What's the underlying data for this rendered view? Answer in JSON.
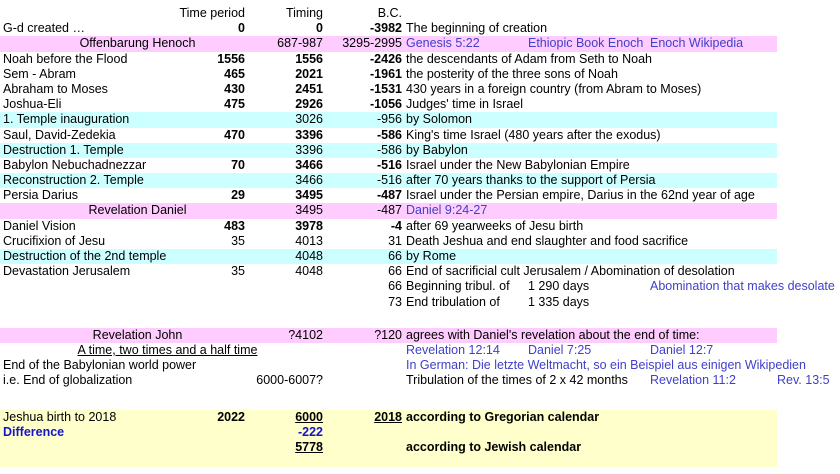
{
  "colors": {
    "pink": "#ffccff",
    "cyan": "#ccffff",
    "yellow": "#ffffcc",
    "link": "#4040c8",
    "blue": "#1414cc",
    "text": "#000000"
  },
  "columns": {
    "header_time_period": "Time period",
    "header_timing": "Timing",
    "header_bc": "B.C."
  },
  "rows": [
    {
      "header": true,
      "b": {
        "text": "Time period"
      },
      "c": {
        "text": "Timing"
      },
      "d": {
        "text": "B.C."
      }
    },
    {
      "a": {
        "text": "G-d created …"
      },
      "b": {
        "text": "0",
        "bold": true
      },
      "c": {
        "text": "0",
        "bold": true
      },
      "d": {
        "text": "-3982",
        "bold": true
      },
      "e": [
        {
          "text": "The beginning of creation",
          "col": "E"
        }
      ]
    },
    {
      "bg": "pink",
      "a": {
        "text": "Offenbarung Henoch",
        "align": "center",
        "cw": 275
      },
      "c": {
        "text": "687-987"
      },
      "d": {
        "text": "3295-2995"
      },
      "e": [
        {
          "text": "Genesis 5:22",
          "col": "E",
          "color": "link",
          "link": true
        },
        {
          "text": "Ethiopic Book Enoch",
          "col": "F",
          "color": "link",
          "link": true
        },
        {
          "text": "Enoch Wikipedia",
          "col": "G",
          "color": "link",
          "link": true
        }
      ]
    },
    {
      "a": {
        "text": "Noah before the Flood"
      },
      "b": {
        "text": "1556",
        "bold": true
      },
      "c": {
        "text": "1556",
        "bold": true
      },
      "d": {
        "text": "-2426",
        "bold": true
      },
      "e": [
        {
          "text": "the descendants of Adam from Seth to Noah",
          "col": "E"
        }
      ]
    },
    {
      "a": {
        "text": "Sem - Abram"
      },
      "b": {
        "text": "465",
        "bold": true
      },
      "c": {
        "text": "2021",
        "bold": true
      },
      "d": {
        "text": "-1961",
        "bold": true
      },
      "e": [
        {
          "text": "the posterity of the three sons of Noah",
          "col": "E"
        }
      ]
    },
    {
      "a": {
        "text": "Abraham to Moses"
      },
      "b": {
        "text": "430",
        "bold": true
      },
      "c": {
        "text": "2451",
        "bold": true
      },
      "d": {
        "text": "-1531",
        "bold": true
      },
      "e": [
        {
          "text": "430 years in a foreign country (from Abram to Moses)",
          "col": "E"
        }
      ]
    },
    {
      "a": {
        "text": "Joshua-Eli"
      },
      "b": {
        "text": "475",
        "bold": true
      },
      "c": {
        "text": "2926",
        "bold": true
      },
      "d": {
        "text": "-1056",
        "bold": true
      },
      "e": [
        {
          "text": "Judges' time in Israel",
          "col": "E"
        }
      ]
    },
    {
      "bg": "cyan",
      "a": {
        "text": "1. Temple inauguration"
      },
      "c": {
        "text": "3026"
      },
      "d": {
        "text": "-956"
      },
      "e": [
        {
          "text": "by Solomon",
          "col": "E"
        }
      ]
    },
    {
      "a": {
        "text": "Saul, David-Zedekia"
      },
      "b": {
        "text": "470",
        "bold": true
      },
      "c": {
        "text": "3396",
        "bold": true
      },
      "d": {
        "text": "-586",
        "bold": true
      },
      "e": [
        {
          "text": "King's time Israel (480 years after the exodus)",
          "col": "E"
        }
      ]
    },
    {
      "bg": "cyan",
      "a": {
        "text": "Destruction 1. Temple"
      },
      "c": {
        "text": "3396"
      },
      "d": {
        "text": "-586"
      },
      "e": [
        {
          "text": "by Babylon",
          "col": "E"
        }
      ]
    },
    {
      "a": {
        "text": "Babylon Nebuchadnezzar"
      },
      "b": {
        "text": "70",
        "bold": true
      },
      "c": {
        "text": "3466",
        "bold": true
      },
      "d": {
        "text": "-516",
        "bold": true
      },
      "e": [
        {
          "text": "Israel under the New Babylonian Empire",
          "col": "E"
        }
      ]
    },
    {
      "bg": "cyan",
      "a": {
        "text": "Reconstruction 2. Temple"
      },
      "c": {
        "text": "3466"
      },
      "d": {
        "text": "-516"
      },
      "e": [
        {
          "text": "after 70 years thanks to the support of Persia",
          "col": "E"
        }
      ]
    },
    {
      "a": {
        "text": "Persia Darius"
      },
      "b": {
        "text": "29",
        "bold": true
      },
      "c": {
        "text": "3495",
        "bold": true
      },
      "d": {
        "text": "-487",
        "bold": true
      },
      "e": [
        {
          "text": "Israel under the Persian empire, Darius in the 62nd year of age",
          "col": "E"
        }
      ]
    },
    {
      "bg": "pink",
      "a": {
        "text": "Revelation Daniel",
        "align": "center",
        "cw": 275
      },
      "c": {
        "text": "3495"
      },
      "d": {
        "text": "-487"
      },
      "e": [
        {
          "text": "Daniel 9:24-27",
          "col": "E",
          "color": "link",
          "link": true
        }
      ]
    },
    {
      "a": {
        "text": "Daniel Vision"
      },
      "b": {
        "text": "483",
        "bold": true
      },
      "c": {
        "text": "3978",
        "bold": true
      },
      "d": {
        "text": "-4",
        "bold": true
      },
      "e": [
        {
          "text": "after 69 yearweeks of Jesu birth",
          "col": "E"
        }
      ]
    },
    {
      "a": {
        "text": "Crucifixion of Jesu"
      },
      "b": {
        "text": "35"
      },
      "c": {
        "text": "4013"
      },
      "d": {
        "text": "31"
      },
      "e": [
        {
          "text": "Death Jeshua and end slaughter and food sacrifice",
          "col": "E"
        }
      ]
    },
    {
      "bg": "cyan",
      "a": {
        "text": "Destruction of the 2nd temple"
      },
      "c": {
        "text": "4048"
      },
      "d": {
        "text": "66"
      },
      "e": [
        {
          "text": "by Rome",
          "col": "E"
        }
      ]
    },
    {
      "a": {
        "text": "Devastation Jerusalem"
      },
      "b": {
        "text": "35"
      },
      "c": {
        "text": "4048"
      },
      "d": {
        "text": "66"
      },
      "e": [
        {
          "text": "End of sacrificial cult Jerusalem / Abomination of desolation",
          "col": "E"
        }
      ]
    },
    {
      "d": {
        "text": "66"
      },
      "e": [
        {
          "text": "Beginning tribul. of",
          "col": "E"
        },
        {
          "text": "1 290 days",
          "col": "F"
        },
        {
          "text": "Abomination that makes desolate",
          "col": "G",
          "color": "link",
          "link": true
        }
      ]
    },
    {
      "d": {
        "text": "73"
      },
      "e": [
        {
          "text": "End tribulation of",
          "col": "E"
        },
        {
          "text": "1 335 days",
          "col": "F"
        }
      ]
    },
    {
      "h": 18
    },
    {
      "bg": "pink",
      "a": {
        "text": "Revelation John",
        "align": "center",
        "cw": 275
      },
      "c": {
        "text": "?4102"
      },
      "d": {
        "text": "?120"
      },
      "e": [
        {
          "text": "agrees with Daniel's revelation about the end of time:",
          "col": "E"
        }
      ]
    },
    {
      "a": {
        "text": "A time, two times and a half time",
        "align": "center",
        "cw": 335,
        "underline": true
      },
      "e": [
        {
          "text": "Revelation 12:14",
          "col": "E",
          "color": "link",
          "link": true
        },
        {
          "text": "Daniel 7:25",
          "col": "F",
          "color": "link",
          "link": true
        },
        {
          "text": "Daniel 12:7",
          "col": "G",
          "color": "link",
          "link": true
        }
      ]
    },
    {
      "a": {
        "text": "End of the Babylonian world power"
      },
      "e": [
        {
          "text": "In German: Die letzte Weltmacht, so ein Beispiel aus einigen Wikipedien",
          "col": "E",
          "color": "link",
          "link": true
        }
      ]
    },
    {
      "a": {
        "text": "i.e. End of globalization"
      },
      "c": {
        "text": "6000-6007?"
      },
      "e": [
        {
          "text": "Tribulation of the times of 2 x 42 months",
          "col": "E"
        },
        {
          "text": "Revelation 11:2",
          "col": "G",
          "color": "link",
          "link": true
        },
        {
          "text": "Rev. 13:5",
          "col": "H",
          "color": "link",
          "link": true
        }
      ]
    },
    {
      "h": 21
    },
    {
      "bg": "yellow",
      "a": {
        "text": "Jeshua birth to 2018"
      },
      "b": {
        "text": "2022",
        "bold": true
      },
      "c": {
        "text": "6000",
        "bold": true,
        "underline": true
      },
      "d": {
        "text": "2018",
        "bold": true,
        "underline": true
      },
      "e": [
        {
          "text": "according to Gregorian calendar",
          "col": "E",
          "bold": true
        }
      ]
    },
    {
      "bg": "yellow",
      "a": {
        "text": "Difference",
        "bold": true,
        "color": "blue"
      },
      "c": {
        "text": "-222",
        "bold": true,
        "color": "blue"
      }
    },
    {
      "bg": "yellow",
      "c": {
        "text": "5778",
        "bold": true,
        "underline": true
      },
      "e": [
        {
          "text": "according to Jewish calendar",
          "col": "E",
          "bold": true
        }
      ]
    },
    {
      "bg": "yellow",
      "h": 12
    }
  ]
}
